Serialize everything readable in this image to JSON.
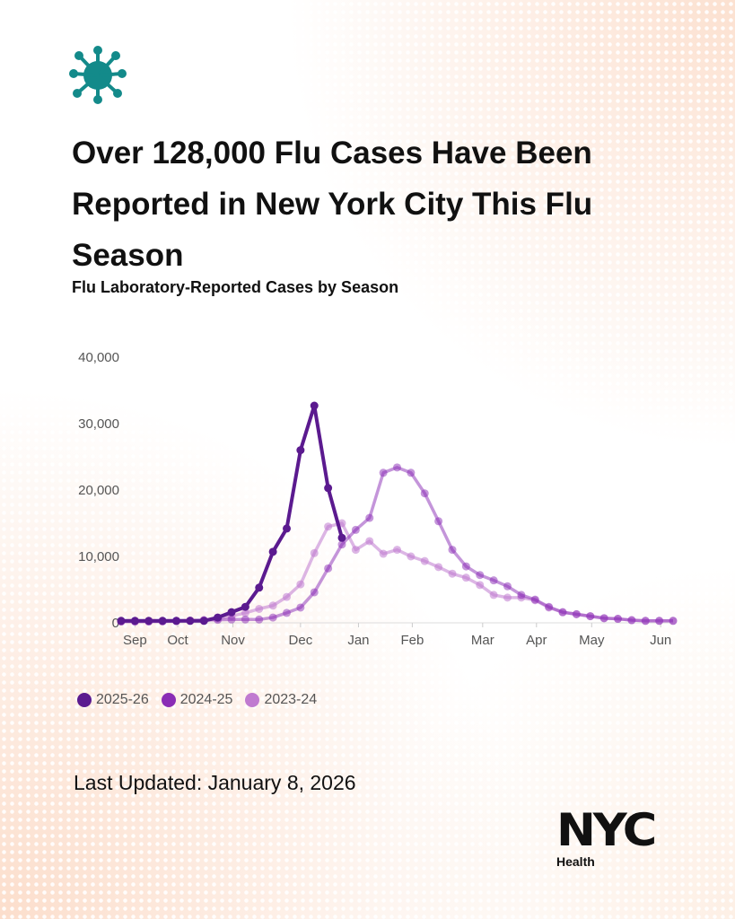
{
  "header": {
    "icon": "virus-icon",
    "title": "Over 128,000 Flu Cases Have Been Reported in New York City This Flu Season",
    "subtitle": "Flu Laboratory-Reported Cases by Season"
  },
  "footer": {
    "last_updated": "Last Updated: January 8, 2026",
    "logo_text": "NYC",
    "logo_sub": "Health"
  },
  "chart_data": {
    "type": "line",
    "title": "Flu Laboratory-Reported Cases by Season",
    "xlabel": "",
    "ylabel": "",
    "x_unit": "week index from season start",
    "ylim": [
      0,
      40000
    ],
    "xlim": [
      0,
      40
    ],
    "yticks": [
      0,
      10000,
      20000,
      30000,
      40000
    ],
    "ytick_labels": [
      "0",
      "10,000",
      "20,000",
      "30,000",
      "40,000"
    ],
    "xticks": [
      {
        "label": "Sep",
        "week": 1.0
      },
      {
        "label": "Oct",
        "week": 4.1
      },
      {
        "label": "Nov",
        "week": 8.1
      },
      {
        "label": "Dec",
        "week": 13.0
      },
      {
        "label": "Jan",
        "week": 17.2
      },
      {
        "label": "Feb",
        "week": 21.1
      },
      {
        "label": "Mar",
        "week": 26.2
      },
      {
        "label": "Apr",
        "week": 30.1
      },
      {
        "label": "May",
        "week": 34.1
      },
      {
        "label": "Jun",
        "week": 39.1
      }
    ],
    "grid": false,
    "legend_position": "bottom-left",
    "series": [
      {
        "name": "2023-24",
        "color": "#c07ad0",
        "values": [
          200,
          200,
          200,
          200,
          250,
          300,
          400,
          600,
          1000,
          1500,
          2100,
          2600,
          3900,
          5800,
          10500,
          14500,
          15000,
          11000,
          12300,
          10400,
          11000,
          10000,
          9300,
          8400,
          7400,
          6800,
          5700,
          4200,
          3800,
          3800,
          3400,
          2300,
          1600,
          1300,
          1000,
          700,
          600,
          400,
          300,
          300,
          300
        ]
      },
      {
        "name": "2024-25",
        "color": "#8a2cb5",
        "values": [
          200,
          200,
          200,
          250,
          300,
          350,
          400,
          450,
          500,
          500,
          500,
          800,
          1500,
          2300,
          4600,
          8200,
          11800,
          14000,
          15800,
          22600,
          23400,
          22600,
          19500,
          15300,
          11000,
          8500,
          7200,
          6400,
          5500,
          4200,
          3500,
          2400,
          1600,
          1300,
          1000,
          700,
          600,
          400,
          300,
          300,
          300
        ]
      },
      {
        "name": "2025-26",
        "color": "#5b1a8f",
        "values": [
          300,
          300,
          300,
          300,
          300,
          300,
          300,
          800,
          1600,
          2400,
          5300,
          10700,
          14200,
          26000,
          32700,
          20300,
          12800
        ]
      }
    ]
  }
}
